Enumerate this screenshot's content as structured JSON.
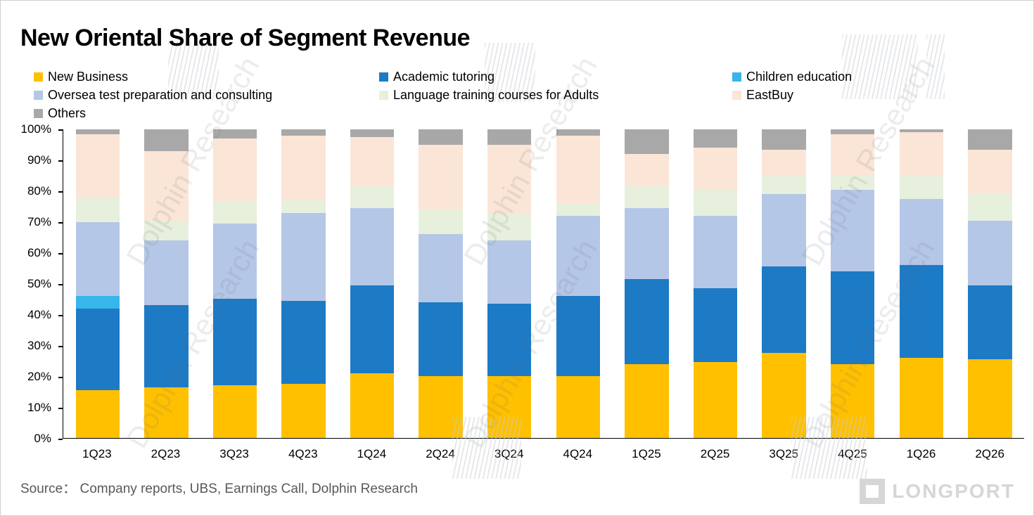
{
  "title": "New Oriental Share of Segment Revenue",
  "source": "Source：  Company reports, UBS, Earnings Call, Dolphin Research",
  "watermark": {
    "text": "Dolphin Research",
    "logo_text": "LONGPORT"
  },
  "chart_data": {
    "type": "bar",
    "subtype": "stacked-100-percent",
    "title": "New Oriental Share of Segment Revenue",
    "xlabel": "",
    "ylabel": "",
    "ylim": [
      0,
      100
    ],
    "grid": false,
    "legend_position": "top",
    "y_ticks": [
      "100%",
      "90%",
      "80%",
      "70%",
      "60%",
      "50%",
      "40%",
      "30%",
      "20%",
      "10%",
      "0%"
    ],
    "categories": [
      "1Q23",
      "2Q23",
      "3Q23",
      "4Q23",
      "1Q24",
      "2Q24",
      "3Q24",
      "4Q24",
      "1Q25",
      "2Q25",
      "3Q25",
      "4Q25",
      "1Q26",
      "2Q26"
    ],
    "series": [
      {
        "name": "New Business",
        "color": "#FFC000",
        "values": [
          15.5,
          16.5,
          17,
          17.5,
          21,
          20,
          20,
          20,
          24,
          24.5,
          27.5,
          24,
          26,
          25.5
        ]
      },
      {
        "name": "Academic tutoring",
        "color": "#1D7AC5",
        "values": [
          26.5,
          26.5,
          28,
          27,
          28.5,
          24,
          23.5,
          26,
          27.5,
          24,
          28,
          30,
          30,
          24
        ]
      },
      {
        "name": "Children education",
        "color": "#36B6EA",
        "values": [
          4,
          0,
          0,
          0,
          0,
          0,
          0,
          0,
          0,
          0,
          0,
          0,
          0,
          0
        ]
      },
      {
        "name": "Oversea test preparation and consulting",
        "color": "#B4C7E7",
        "values": [
          24,
          21,
          24.5,
          28.5,
          25,
          22,
          20.5,
          26,
          23,
          23.5,
          23.5,
          26.5,
          21.5,
          21
        ]
      },
      {
        "name": "Language training courses for Adults",
        "color": "#E7F0DC",
        "values": [
          8,
          6.5,
          7,
          4,
          7,
          8,
          9,
          4,
          7,
          8.5,
          6,
          4.5,
          7.5,
          8.5
        ]
      },
      {
        "name": "EastBuy",
        "color": "#FBE5D6",
        "values": [
          20.5,
          22.5,
          20.5,
          21,
          16,
          21,
          22,
          22,
          10.5,
          13.5,
          8.5,
          13.5,
          14,
          14.5
        ]
      },
      {
        "name": "Others",
        "color": "#A8A8A8",
        "values": [
          1.5,
          7,
          3,
          2,
          2.5,
          5,
          5,
          2,
          8,
          6,
          6.5,
          1.5,
          1,
          6.5
        ]
      }
    ]
  }
}
